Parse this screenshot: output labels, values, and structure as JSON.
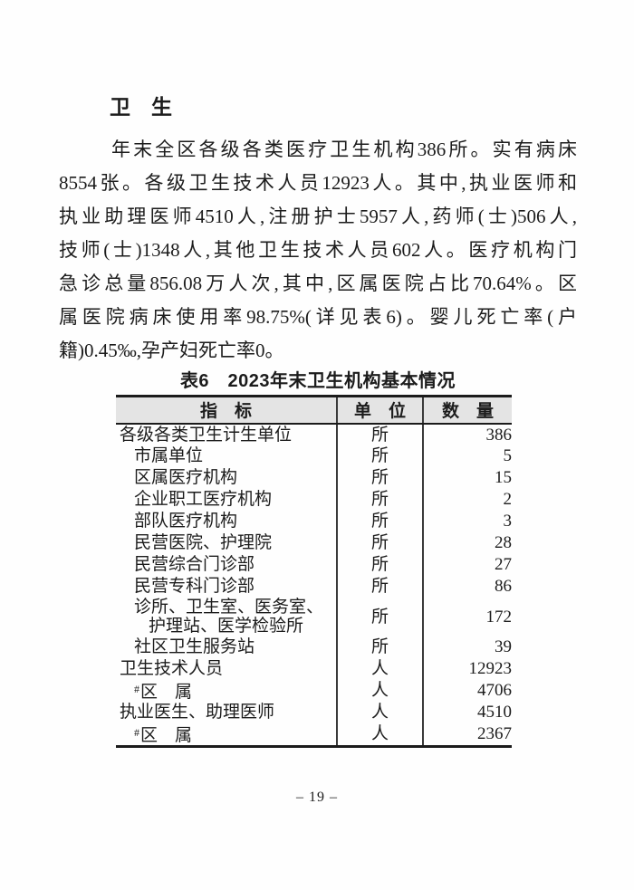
{
  "page": {
    "section_title": "卫　生",
    "paragraph_lines": [
      "年末全区各级各类医疗卫生机构386所。实有病床",
      "8554张。各级卫生技术人员12923人。其中,执业医师和",
      "执业助理医师4510人,注册护士5957人,药师(士)506人,",
      "技师(士)1348人,其他卫生技术人员602人。医疗机构门",
      "急诊总量856.08万人次,其中,区属医院占比70.64%。区",
      "属医院病床使用率98.75%(详见表6)。婴儿死亡率(户",
      "籍)0.45‰,孕产妇死亡率0。"
    ],
    "table": {
      "title": "表6　2023年末卫生机构基本情况",
      "columns": [
        "指　标",
        "单　位",
        "数　量"
      ],
      "rows": [
        {
          "indicator": "各级各类卫生计生单位",
          "indent": 0,
          "unit": "所",
          "value": "386"
        },
        {
          "indicator": "市属单位",
          "indent": 1,
          "unit": "所",
          "value": "5"
        },
        {
          "indicator": "区属医疗机构",
          "indent": 1,
          "unit": "所",
          "value": "15"
        },
        {
          "indicator": "企业职工医疗机构",
          "indent": 1,
          "unit": "所",
          "value": "2"
        },
        {
          "indicator": "部队医疗机构",
          "indent": 1,
          "unit": "所",
          "value": "3"
        },
        {
          "indicator": "民营医院、护理院",
          "indent": 1,
          "unit": "所",
          "value": "28"
        },
        {
          "indicator": "民营综合门诊部",
          "indent": 1,
          "unit": "所",
          "value": "27"
        },
        {
          "indicator": "民营专科门诊部",
          "indent": 1,
          "unit": "所",
          "value": "86"
        },
        {
          "indicator": "诊所、卫生室、医务室、",
          "indicator_line2": "护理站、医学检验所",
          "indent": 1,
          "unit": "所",
          "value": "172"
        },
        {
          "indicator": "社区卫生服务站",
          "indent": 1,
          "unit": "所",
          "value": "39"
        },
        {
          "indicator": "卫生技术人员",
          "indent": 0,
          "unit": "人",
          "value": "12923"
        },
        {
          "indicator": "区　属",
          "hash": true,
          "indent": 1,
          "unit": "人",
          "value": "4706"
        },
        {
          "indicator": "执业医生、助理医师",
          "indent": 0,
          "unit": "人",
          "value": "4510"
        },
        {
          "indicator": "区　属",
          "hash": true,
          "indent": 1,
          "unit": "人",
          "value": "2367"
        }
      ]
    },
    "page_number": "– 19 –",
    "colors": {
      "header_bg": "#e4e4e4",
      "rule": "#1b1b1b",
      "text": "#1c1c1c"
    }
  }
}
